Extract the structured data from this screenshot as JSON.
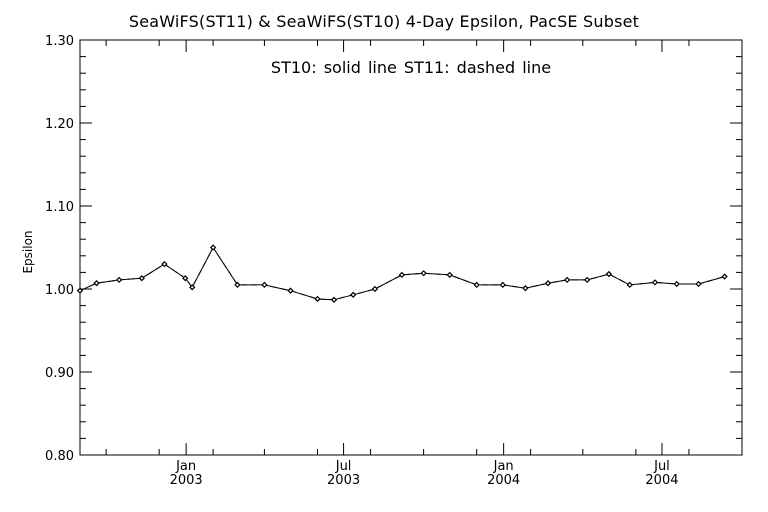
{
  "chart_data": {
    "type": "line",
    "title": "SeaWiFS(ST11) & SeaWiFS(ST10) 4-Day Epsilon, PacSE Subset",
    "annotation": "ST10: solid line   ST11: dashed line",
    "xlabel": "",
    "ylabel": "Epsilon",
    "ylim": [
      0.8,
      1.3
    ],
    "yticks": [
      "0.80",
      "0.90",
      "1.00",
      "1.10",
      "1.20",
      "1.30"
    ],
    "xlim": [
      "2002-09-01",
      "2004-10-01"
    ],
    "xticks": [
      {
        "date": "2003-01-01",
        "month": "Jan",
        "year": "2003"
      },
      {
        "date": "2003-07-01",
        "month": "Jul",
        "year": "2003"
      },
      {
        "date": "2004-01-01",
        "month": "Jan",
        "year": "2004"
      },
      {
        "date": "2004-07-01",
        "month": "Jul",
        "year": "2004"
      }
    ],
    "series": [
      {
        "name": "ST10",
        "style": "solid",
        "x": [
          "2002-09-01",
          "2002-09-20",
          "2002-10-16",
          "2002-11-11",
          "2002-12-07",
          "2002-12-31",
          "2003-01-08",
          "2003-02-01",
          "2003-03-01",
          "2003-04-01",
          "2003-05-01",
          "2003-06-01",
          "2003-06-20",
          "2003-07-12",
          "2003-08-06",
          "2003-09-06",
          "2003-10-01",
          "2003-10-31",
          "2003-12-01",
          "2003-12-31",
          "2004-01-26",
          "2004-02-21",
          "2004-03-14",
          "2004-04-06",
          "2004-05-01",
          "2004-05-25",
          "2004-06-23",
          "2004-07-18",
          "2004-08-12",
          "2004-09-11"
        ],
        "values": [
          0.998,
          1.007,
          1.011,
          1.013,
          1.03,
          1.013,
          1.002,
          1.05,
          1.005,
          1.005,
          0.998,
          0.988,
          0.987,
          0.993,
          1.0,
          1.017,
          1.019,
          1.017,
          1.005,
          1.005,
          1.001,
          1.007,
          1.011,
          1.011,
          1.018,
          1.005,
          1.008,
          1.006,
          1.006,
          1.015
        ]
      },
      {
        "name": "ST11",
        "style": "dashed",
        "x": [
          "2002-09-01",
          "2002-09-20",
          "2002-10-16",
          "2002-11-11",
          "2002-12-07",
          "2002-12-31",
          "2003-01-08",
          "2003-02-01",
          "2003-03-01",
          "2003-04-01",
          "2003-05-01",
          "2003-06-01",
          "2003-06-20",
          "2003-07-12",
          "2003-08-06",
          "2003-09-06",
          "2003-10-01",
          "2003-10-31",
          "2003-12-01",
          "2003-12-31",
          "2004-01-26",
          "2004-02-21",
          "2004-03-14",
          "2004-04-06",
          "2004-05-01",
          "2004-05-25",
          "2004-06-23",
          "2004-07-18",
          "2004-08-12",
          "2004-09-11"
        ],
        "values": [
          0.998,
          1.007,
          1.011,
          1.013,
          1.03,
          1.013,
          1.002,
          1.05,
          1.005,
          1.005,
          0.998,
          0.988,
          0.987,
          0.993,
          1.0,
          1.017,
          1.019,
          1.017,
          1.005,
          1.005,
          1.001,
          1.007,
          1.011,
          1.011,
          1.018,
          1.005,
          1.008,
          1.006,
          1.006,
          1.015
        ]
      }
    ],
    "grid": false,
    "legend": "none"
  }
}
